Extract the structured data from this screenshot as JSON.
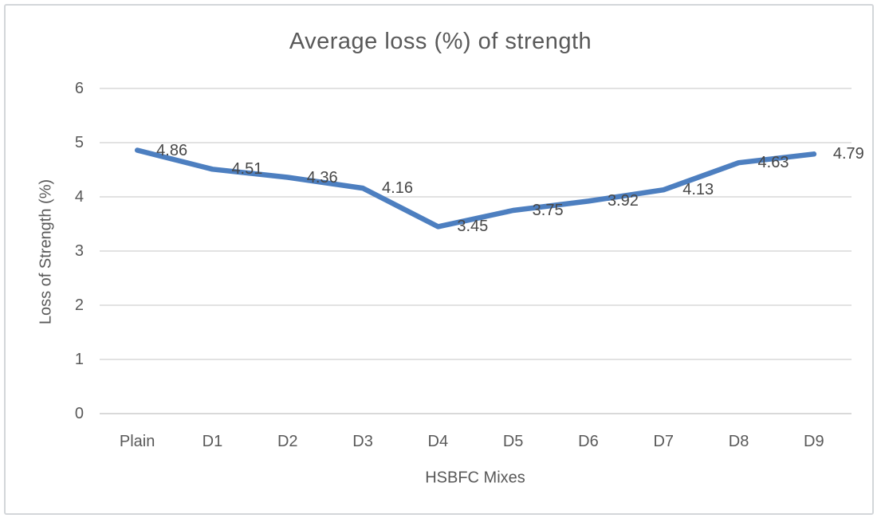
{
  "chart_data": {
    "type": "line",
    "title": "Average loss (%) of strength",
    "categories": [
      "Plain",
      "D1",
      "D2",
      "D3",
      "D4",
      "D5",
      "D6",
      "D7",
      "D8",
      "D9"
    ],
    "values": [
      4.86,
      4.51,
      4.36,
      4.16,
      3.45,
      3.75,
      3.92,
      4.13,
      4.63,
      4.79
    ],
    "data_labels": [
      "4.86",
      "4.51",
      "4.36",
      "4.16",
      "3.45",
      "3.75",
      "3.92",
      "4.13",
      "4.63",
      "4.79"
    ],
    "xlabel": "HSBFC Mixes",
    "ylabel": "Loss of Strength (%)",
    "ylim": [
      0,
      6
    ],
    "yticks": [
      "0",
      "1",
      "2",
      "3",
      "4",
      "5",
      "6"
    ],
    "grid": "horizontal-major",
    "legend": "none",
    "data_label_position": "right",
    "colors": {
      "line": "#4d7fc0",
      "grid": "#d9d9d9",
      "axis_text": "#595959",
      "title_text": "#595959",
      "data_label_text": "#474747",
      "frame_border": "#d3d6d9",
      "background": "#ffffff"
    }
  }
}
